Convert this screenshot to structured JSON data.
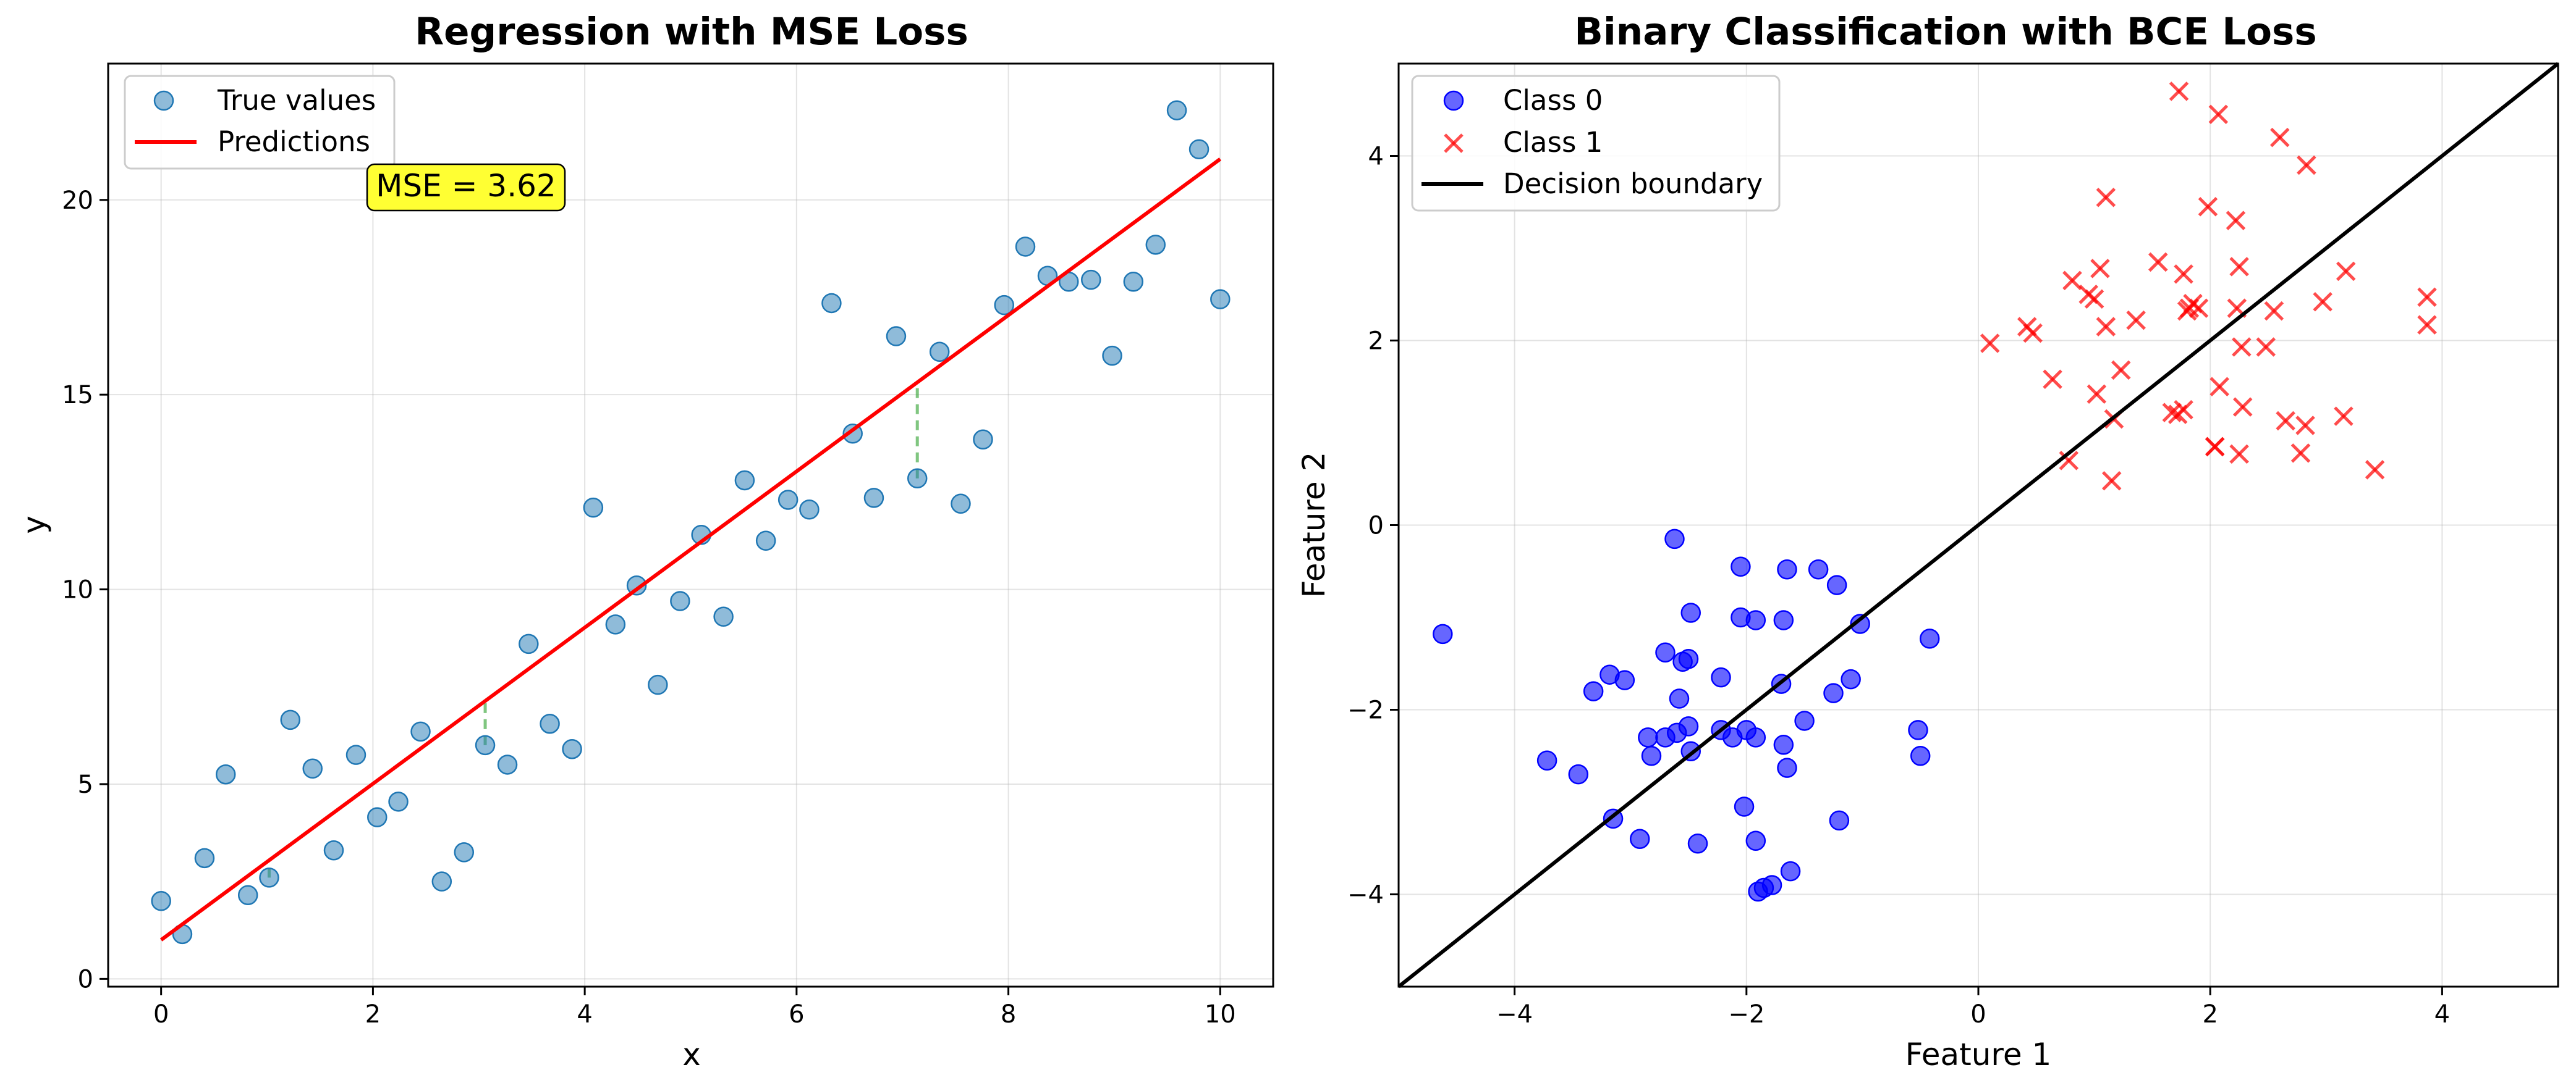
{
  "chart_data": [
    {
      "type": "scatter",
      "title": "Regression with MSE Loss",
      "xlabel": "x",
      "ylabel": "y",
      "xlim": [
        -0.5,
        10.5
      ],
      "ylim": [
        -0.2,
        23.5
      ],
      "xticks": [
        0,
        2,
        4,
        6,
        8,
        10
      ],
      "yticks": [
        0,
        5,
        10,
        15,
        20
      ],
      "grid": true,
      "legend_position": "top-left",
      "annotation": {
        "text": "MSE = 3.62",
        "x": 2.8,
        "y": 20.3,
        "background": "#ffff33"
      },
      "series": [
        {
          "name": "True values",
          "kind": "points",
          "color": "#1f77b4",
          "x": [
            0.0,
            0.2,
            0.41,
            0.61,
            0.82,
            1.02,
            1.22,
            1.43,
            1.63,
            1.84,
            2.04,
            2.24,
            2.45,
            2.65,
            2.86,
            3.06,
            3.27,
            3.47,
            3.67,
            3.88,
            4.08,
            4.29,
            4.49,
            4.69,
            4.9,
            5.1,
            5.31,
            5.51,
            5.71,
            5.92,
            6.12,
            6.33,
            6.53,
            6.73,
            6.94,
            7.14,
            7.35,
            7.55,
            7.76,
            7.96,
            8.16,
            8.37,
            8.57,
            8.78,
            8.98,
            9.18,
            9.39,
            9.59,
            9.8,
            10.0
          ],
          "y": [
            2.0,
            1.15,
            3.1,
            5.25,
            2.15,
            2.6,
            6.65,
            5.4,
            3.3,
            5.75,
            4.15,
            4.55,
            6.35,
            2.5,
            3.25,
            6.0,
            5.5,
            8.6,
            6.55,
            5.9,
            12.1,
            9.1,
            10.1,
            7.55,
            9.7,
            11.4,
            9.3,
            12.8,
            11.25,
            12.3,
            12.05,
            17.35,
            14.0,
            12.35,
            16.5,
            12.85,
            16.1,
            12.2,
            13.85,
            17.3,
            18.8,
            18.05,
            17.9,
            17.95,
            16.0,
            17.9,
            18.85,
            22.3,
            21.3,
            17.45
          ]
        },
        {
          "name": "Predictions",
          "kind": "line",
          "color": "#ff0000",
          "x": [
            0,
            10
          ],
          "y": [
            1.0,
            21.05
          ]
        },
        {
          "kind": "residuals",
          "color": "#2ca02c",
          "x": [
            1.02,
            3.06,
            7.14
          ],
          "y_from": [
            2.6,
            6.0,
            12.85
          ],
          "y_to": [
            3.05,
            7.15,
            15.3
          ]
        }
      ]
    },
    {
      "type": "scatter",
      "title": "Binary Classification with BCE Loss",
      "xlabel": "Feature 1",
      "ylabel": "Feature 2",
      "xlim": [
        -5,
        5
      ],
      "ylim": [
        -5,
        5
      ],
      "xticks": [
        -4,
        -2,
        0,
        2,
        4
      ],
      "yticks": [
        -4,
        -2,
        0,
        2,
        4
      ],
      "grid": true,
      "legend_position": "top-left",
      "series": [
        {
          "name": "Class 0",
          "kind": "points",
          "marker": "circle",
          "color": "#0000ff",
          "x": [
            -4.62,
            -2.62,
            -2.05,
            -1.65,
            -1.38,
            -1.22,
            -2.48,
            -2.05,
            -1.92,
            -1.68,
            -1.02,
            -0.42,
            -2.7,
            -2.55,
            -2.5,
            -3.18,
            -3.05,
            -3.32,
            -2.22,
            -1.7,
            -1.25,
            -2.58,
            -1.1,
            -2.85,
            -2.7,
            -2.6,
            -2.5,
            -2.22,
            -2.12,
            -2.0,
            -1.92,
            -1.68,
            -1.5,
            -0.52,
            -2.82,
            -2.48,
            -1.65,
            -0.5,
            -3.72,
            -3.45,
            -2.02,
            -3.15,
            -1.2,
            -2.92,
            -2.42,
            -1.92,
            -1.62,
            -1.78,
            -1.9,
            -1.85
          ],
          "y": [
            -1.18,
            -0.15,
            -0.45,
            -0.48,
            -0.48,
            -0.65,
            -0.95,
            -1.0,
            -1.03,
            -1.03,
            -1.07,
            -1.23,
            -1.38,
            -1.48,
            -1.45,
            -1.62,
            -1.68,
            -1.8,
            -1.65,
            -1.72,
            -1.82,
            -1.88,
            -1.67,
            -2.3,
            -2.3,
            -2.25,
            -2.18,
            -2.22,
            -2.3,
            -2.22,
            -2.3,
            -2.38,
            -2.12,
            -2.22,
            -2.5,
            -2.45,
            -2.63,
            -2.5,
            -2.55,
            -2.7,
            -3.05,
            -3.18,
            -3.2,
            -3.4,
            -3.45,
            -3.42,
            -3.75,
            -3.9,
            -3.97,
            -3.93
          ]
        },
        {
          "name": "Class 1",
          "kind": "points",
          "marker": "x",
          "color": "#ff0000",
          "x": [
            1.73,
            2.07,
            2.6,
            2.83,
            1.1,
            1.98,
            2.22,
            1.55,
            2.25,
            0.95,
            1.05,
            1.77,
            0.81,
            1.82,
            2.23,
            2.55,
            1.85,
            1.9,
            1.8,
            2.97,
            3.17,
            3.87,
            0.1,
            0.42,
            0.47,
            1.0,
            1.1,
            1.36,
            2.27,
            2.48,
            3.87,
            0.64,
            1.23,
            1.67,
            1.02,
            2.08,
            2.28,
            1.77,
            1.17,
            2.65,
            2.04,
            2.82,
            3.15,
            2.78,
            2.04,
            2.25,
            1.72,
            3.42,
            0.78,
            1.15
          ],
          "y": [
            4.7,
            4.45,
            4.2,
            3.9,
            3.55,
            3.45,
            3.3,
            2.85,
            2.8,
            2.5,
            2.78,
            2.72,
            2.65,
            2.35,
            2.35,
            2.32,
            2.4,
            2.35,
            2.32,
            2.42,
            2.75,
            2.47,
            1.97,
            2.15,
            2.08,
            2.45,
            2.15,
            2.22,
            1.93,
            1.93,
            2.17,
            1.58,
            1.68,
            1.22,
            1.42,
            1.5,
            1.28,
            1.25,
            1.15,
            1.13,
            0.85,
            1.08,
            1.18,
            0.78,
            0.85,
            0.77,
            1.2,
            0.6,
            0.7,
            0.48
          ]
        },
        {
          "name": "Decision boundary",
          "kind": "line",
          "color": "#000000",
          "x": [
            -5,
            5
          ],
          "y": [
            -5,
            5
          ]
        }
      ]
    }
  ]
}
